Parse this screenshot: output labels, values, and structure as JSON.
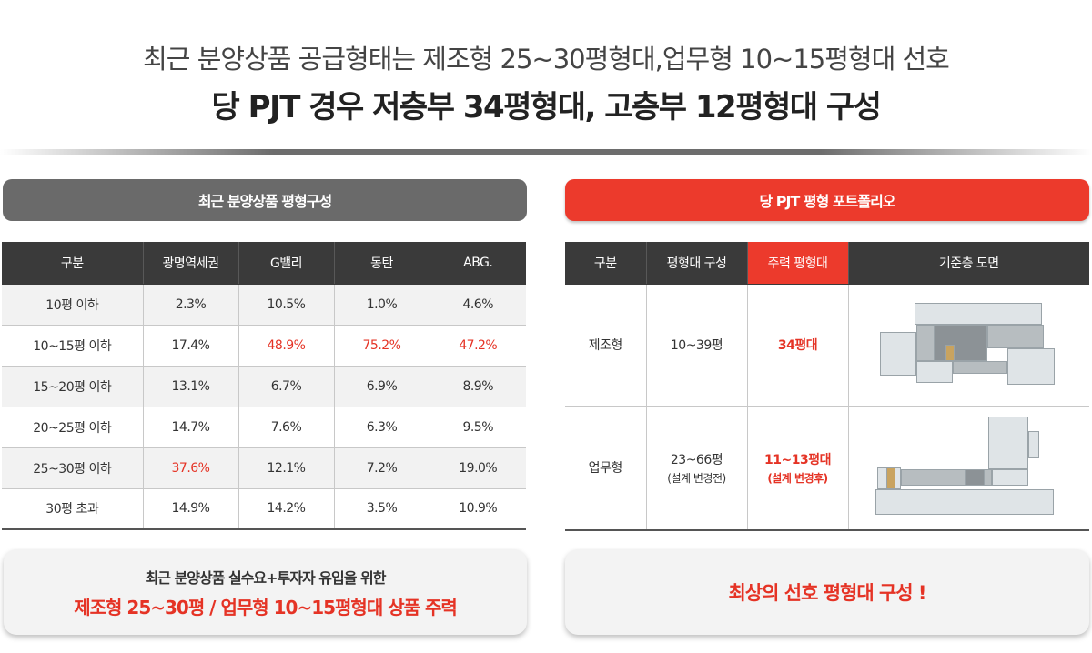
{
  "header": {
    "line1": "최근 분양상품 공급형태는 제조형 25~30평형대,업무형 10~15평형대 선호",
    "line2": "당 PJT 경우 저층부 34평형대, 고층부 12평형대 구성"
  },
  "left_panel": {
    "title": "최근 분양상품 평형구성",
    "columns": [
      "구분",
      "광명역세권",
      "G밸리",
      "동탄",
      "ABG."
    ],
    "rows": [
      {
        "label": "10평 이하",
        "v1": "2.3%",
        "v2": "10.5%",
        "v3": "1.0%",
        "v4": "4.6%"
      },
      {
        "label": "10~15평 이하",
        "v1": "17.4%",
        "v2": "48.9%",
        "v3": "75.2%",
        "v4": "47.2%"
      },
      {
        "label": "15~20평 이하",
        "v1": "13.1%",
        "v2": "6.7%",
        "v3": "6.9%",
        "v4": "8.9%"
      },
      {
        "label": "20~25평 이하",
        "v1": "14.7%",
        "v2": "7.6%",
        "v3": "6.3%",
        "v4": "9.5%"
      },
      {
        "label": "25~30평 이하",
        "v1": "37.6%",
        "v2": "12.1%",
        "v3": "7.2%",
        "v4": "19.0%"
      },
      {
        "label": "30평 초과",
        "v1": "14.9%",
        "v2": "14.2%",
        "v3": "3.5%",
        "v4": "10.9%"
      }
    ],
    "summary_line1": "최근 분양상품 실수요+투자자 유입을 위한",
    "summary_line2": "제조형 25~30평 / 업무형 10~15평형대 상품 주력"
  },
  "right_panel": {
    "title": "당 PJT 평형 포트폴리오",
    "columns": [
      "구분",
      "평형대 구성",
      "주력 평형대",
      "기준층 도면"
    ],
    "rows": [
      {
        "type": "제조형",
        "range": "10~39평",
        "range_note": "",
        "main": "34평대",
        "main_note": ""
      },
      {
        "type": "업무형",
        "range": "23~66평",
        "range_note": "(설계 변경전)",
        "main": "11~13평대",
        "main_note": "(설계 변경후)"
      }
    ],
    "summary": "최상의 선호 평형대 구성 !"
  },
  "colors": {
    "accent_red": "#ec3a2c",
    "dark_header": "#3a3a3a",
    "gray_pill": "#6a6a6a"
  }
}
